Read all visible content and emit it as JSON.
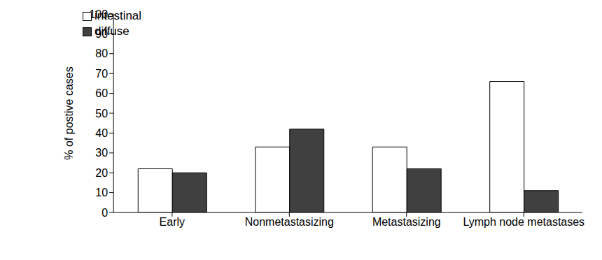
{
  "chart_data": {
    "type": "bar",
    "y_label": "% of postive cases",
    "categories": [
      "Early",
      "Nonmetastasizing",
      "Metastasizing",
      "Lymph node metastases"
    ],
    "series": [
      {
        "name": "intestinal",
        "color": "#ffffff",
        "values": [
          22,
          33,
          33,
          66
        ]
      },
      {
        "name": "diffuse",
        "color": "#404040",
        "values": [
          20,
          42,
          22,
          11
        ]
      }
    ],
    "ylim": [
      0,
      100
    ],
    "yticks": [
      0,
      10,
      20,
      30,
      40,
      50,
      60,
      70,
      80,
      90,
      100
    ],
    "grid": false,
    "legend": "top-left"
  }
}
